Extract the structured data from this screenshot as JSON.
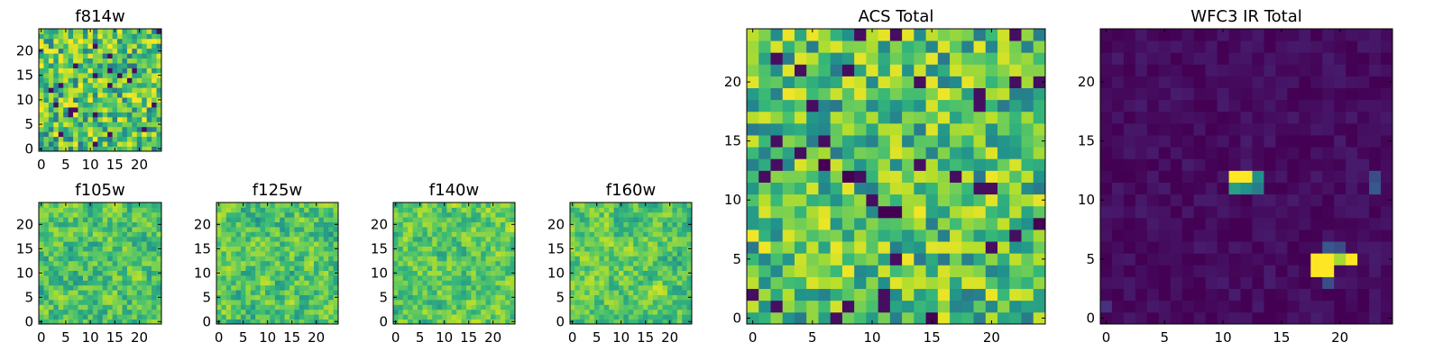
{
  "chart_data": [
    {
      "id": "f814w",
      "type": "heatmap",
      "title": "f814w",
      "colormap": "viridis",
      "grid_size": 25,
      "xticks": [
        0,
        5,
        10,
        15,
        20
      ],
      "yticks": [
        0,
        5,
        10,
        15,
        20
      ],
      "texture": "noise",
      "seed": 11,
      "background_level": 0.7,
      "noise_amplitude": 0.3,
      "hotspots": []
    },
    {
      "id": "f105w",
      "type": "heatmap",
      "title": "f105w",
      "colormap": "viridis",
      "grid_size": 25,
      "xticks": [
        0,
        5,
        10,
        15,
        20
      ],
      "yticks": [
        0,
        5,
        10,
        15,
        20
      ],
      "texture": "smooth",
      "seed": 23,
      "background_level": 0.7,
      "noise_amplitude": 0.3,
      "hotspots": []
    },
    {
      "id": "f125w",
      "type": "heatmap",
      "title": "f125w",
      "colormap": "viridis",
      "grid_size": 25,
      "xticks": [
        0,
        5,
        10,
        15,
        20
      ],
      "yticks": [
        0,
        5,
        10,
        15,
        20
      ],
      "texture": "smooth",
      "seed": 37,
      "background_level": 0.7,
      "noise_amplitude": 0.3,
      "hotspots": []
    },
    {
      "id": "f140w",
      "type": "heatmap",
      "title": "f140w",
      "colormap": "viridis",
      "grid_size": 25,
      "xticks": [
        0,
        5,
        10,
        15,
        20
      ],
      "yticks": [
        0,
        5,
        10,
        15,
        20
      ],
      "texture": "smooth",
      "seed": 41,
      "background_level": 0.72,
      "noise_amplitude": 0.28,
      "hotspots": []
    },
    {
      "id": "f160w",
      "type": "heatmap",
      "title": "f160w",
      "colormap": "viridis",
      "grid_size": 25,
      "xticks": [
        0,
        5,
        10,
        15,
        20
      ],
      "yticks": [
        0,
        5,
        10,
        15,
        20
      ],
      "texture": "smooth",
      "seed": 53,
      "background_level": 0.72,
      "noise_amplitude": 0.28,
      "hotspots": []
    },
    {
      "id": "acs-total",
      "type": "heatmap",
      "title": "ACS Total",
      "colormap": "viridis",
      "grid_size": 25,
      "xticks": [
        0,
        5,
        10,
        15,
        20
      ],
      "yticks": [
        0,
        5,
        10,
        15,
        20
      ],
      "texture": "noise",
      "seed": 67,
      "background_level": 0.7,
      "noise_amplitude": 0.28,
      "hotspots": [
        {
          "col": 6,
          "row": 13,
          "value": 0.0
        },
        {
          "col": 8,
          "row": 12,
          "value": 0.0
        },
        {
          "col": 9,
          "row": 12,
          "value": 0.05
        },
        {
          "col": 11,
          "row": 9,
          "value": 0.0
        },
        {
          "col": 12,
          "row": 9,
          "value": 0.0
        },
        {
          "col": 11,
          "row": 2,
          "value": 0.05
        },
        {
          "col": 15,
          "row": 0,
          "value": 0.0
        },
        {
          "col": 24,
          "row": 8,
          "value": 0.0
        },
        {
          "col": 22,
          "row": 20,
          "value": 0.05
        },
        {
          "col": 2,
          "row": 22,
          "value": 0.05
        },
        {
          "col": 0,
          "row": 7,
          "value": 0.98
        },
        {
          "col": 1,
          "row": 6,
          "value": 0.98
        },
        {
          "col": 16,
          "row": 19,
          "value": 0.98
        },
        {
          "col": 12,
          "row": 14,
          "value": 0.95
        }
      ]
    },
    {
      "id": "wfc3-ir-total",
      "type": "heatmap",
      "title": "WFC3 IR Total",
      "colormap": "viridis",
      "grid_size": 25,
      "xticks": [
        0,
        5,
        10,
        15,
        20
      ],
      "yticks": [
        0,
        5,
        10,
        15,
        20
      ],
      "texture": "noise",
      "seed": 79,
      "background_level": 0.04,
      "noise_amplitude": 0.06,
      "hotspots": [
        {
          "col": 11,
          "row": 12,
          "value": 1.0
        },
        {
          "col": 12,
          "row": 12,
          "value": 1.0
        },
        {
          "col": 13,
          "row": 12,
          "value": 0.5
        },
        {
          "col": 11,
          "row": 11,
          "value": 0.55
        },
        {
          "col": 12,
          "row": 11,
          "value": 0.5
        },
        {
          "col": 13,
          "row": 11,
          "value": 0.45
        },
        {
          "col": 23,
          "row": 11,
          "value": 0.35
        },
        {
          "col": 23,
          "row": 12,
          "value": 0.3
        },
        {
          "col": 18,
          "row": 5,
          "value": 1.0
        },
        {
          "col": 19,
          "row": 5,
          "value": 1.0
        },
        {
          "col": 20,
          "row": 5,
          "value": 0.85
        },
        {
          "col": 21,
          "row": 5,
          "value": 1.0
        },
        {
          "col": 18,
          "row": 4,
          "value": 1.0
        },
        {
          "col": 19,
          "row": 4,
          "value": 1.0
        },
        {
          "col": 19,
          "row": 6,
          "value": 0.35
        },
        {
          "col": 20,
          "row": 6,
          "value": 0.3
        },
        {
          "col": 19,
          "row": 3,
          "value": 0.3
        },
        {
          "col": 0,
          "row": 1,
          "value": 0.18
        }
      ]
    }
  ]
}
